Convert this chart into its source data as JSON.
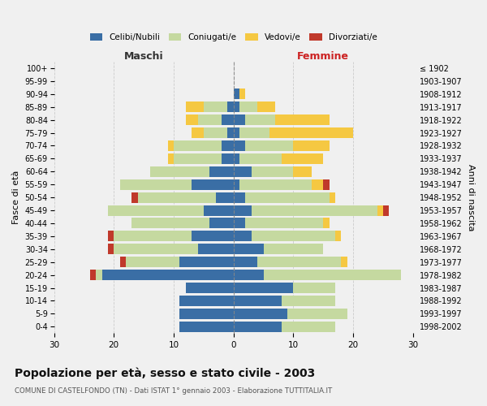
{
  "age_groups": [
    "0-4",
    "5-9",
    "10-14",
    "15-19",
    "20-24",
    "25-29",
    "30-34",
    "35-39",
    "40-44",
    "45-49",
    "50-54",
    "55-59",
    "60-64",
    "65-69",
    "70-74",
    "75-79",
    "80-84",
    "85-89",
    "90-94",
    "95-99",
    "100+"
  ],
  "birth_years": [
    "1998-2002",
    "1993-1997",
    "1988-1992",
    "1983-1987",
    "1978-1982",
    "1973-1977",
    "1968-1972",
    "1963-1967",
    "1958-1962",
    "1953-1957",
    "1948-1952",
    "1943-1947",
    "1938-1942",
    "1933-1937",
    "1928-1932",
    "1923-1927",
    "1918-1922",
    "1913-1917",
    "1908-1912",
    "1903-1907",
    "≤ 1902"
  ],
  "males": {
    "celibi": [
      9,
      9,
      9,
      8,
      22,
      9,
      6,
      7,
      4,
      5,
      3,
      7,
      4,
      2,
      2,
      1,
      2,
      1,
      0,
      0,
      0
    ],
    "coniugati": [
      0,
      0,
      0,
      0,
      1,
      9,
      14,
      13,
      13,
      16,
      13,
      12,
      10,
      8,
      8,
      4,
      4,
      4,
      0,
      0,
      0
    ],
    "vedovi": [
      0,
      0,
      0,
      0,
      0,
      0,
      0,
      0,
      0,
      0,
      0,
      0,
      0,
      1,
      1,
      2,
      2,
      3,
      0,
      0,
      0
    ],
    "divorziati": [
      0,
      0,
      0,
      0,
      1,
      1,
      1,
      1,
      0,
      0,
      1,
      0,
      0,
      0,
      0,
      0,
      0,
      0,
      0,
      0,
      0
    ]
  },
  "females": {
    "nubili": [
      8,
      9,
      8,
      10,
      5,
      4,
      5,
      3,
      2,
      3,
      2,
      1,
      3,
      1,
      2,
      1,
      2,
      1,
      1,
      0,
      0
    ],
    "coniugate": [
      9,
      10,
      9,
      7,
      23,
      14,
      10,
      14,
      13,
      21,
      14,
      12,
      7,
      7,
      8,
      5,
      5,
      3,
      0,
      0,
      0
    ],
    "vedove": [
      0,
      0,
      0,
      0,
      0,
      1,
      0,
      1,
      1,
      1,
      1,
      2,
      3,
      7,
      6,
      14,
      9,
      3,
      1,
      0,
      0
    ],
    "divorziate": [
      0,
      0,
      0,
      0,
      0,
      0,
      0,
      0,
      0,
      1,
      0,
      1,
      0,
      0,
      0,
      0,
      0,
      0,
      0,
      0,
      0
    ]
  },
  "colors": {
    "celibi_nubili": "#3a6ea5",
    "coniugati": "#c5d9a0",
    "vedovi": "#f5c842",
    "divorziati": "#c0392b"
  },
  "xlim": 30,
  "title": "Popolazione per età, sesso e stato civile - 2003",
  "subtitle": "COMUNE DI CASTELFONDO (TN) - Dati ISTAT 1° gennaio 2003 - Elaborazione TUTTITALIA.IT",
  "xlabel_left": "Maschi",
  "xlabel_right": "Femmine",
  "ylabel_left": "Fasce di età",
  "ylabel_right": "Anni di nascita",
  "legend_labels": [
    "Celibi/Nubili",
    "Coniugati/e",
    "Vedovi/e",
    "Divorziati/e"
  ],
  "bg_color": "#f0f0f0",
  "grid_color": "#cccccc"
}
